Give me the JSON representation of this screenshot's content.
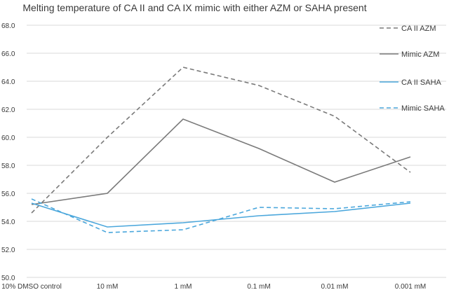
{
  "chart_data": {
    "type": "line",
    "title": "Melting temperature of CA II and CA IX  mimic with either AZM or SAHA  present",
    "xlabel": "",
    "ylabel": "",
    "categories": [
      "10% DMSO control",
      "10 mM",
      "1 mM",
      "0.1 mM",
      "0.01 mM",
      "0.001 mM"
    ],
    "ylim": [
      50.0,
      68.0
    ],
    "yticks": [
      "50.0",
      "52.0",
      "54.0",
      "56.0",
      "58.0",
      "60.0",
      "62.0",
      "64.0",
      "66.0",
      "68.0"
    ],
    "grid": true,
    "legend_position": "right",
    "series": [
      {
        "name": "CA II AZM",
        "values": [
          54.6,
          60.0,
          65.0,
          63.7,
          61.5,
          57.5
        ],
        "color": "#7a7a7a",
        "dash": true
      },
      {
        "name": "Mimic AZM",
        "values": [
          55.2,
          56.0,
          61.3,
          59.2,
          56.8,
          58.6
        ],
        "color": "#7a7a7a",
        "dash": false
      },
      {
        "name": "CA II SAHA",
        "values": [
          55.3,
          53.6,
          53.9,
          54.4,
          54.7,
          55.3
        ],
        "color": "#4ba7dc",
        "dash": false
      },
      {
        "name": "Mimic SAHA",
        "values": [
          55.6,
          53.2,
          53.4,
          55.0,
          54.9,
          55.4
        ],
        "color": "#4ba7dc",
        "dash": true
      }
    ]
  }
}
